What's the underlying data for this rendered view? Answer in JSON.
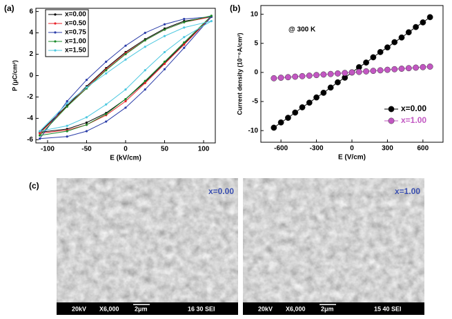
{
  "chart_data": [
    {
      "type": "line",
      "panel": "(a)",
      "xlabel": "E (kV/cm)",
      "ylabel": "P (μC/cm²)",
      "x": [
        -110,
        -75,
        -50,
        -25,
        0,
        25,
        50,
        75,
        110,
        75,
        50,
        25,
        0,
        -25,
        -50,
        -75,
        -110
      ],
      "xlim": [
        -115,
        115
      ],
      "xticks": [
        -100,
        -50,
        0,
        50,
        100
      ],
      "ylim": [
        -6.3,
        6.3
      ],
      "yticks": [
        -6,
        -4,
        -2,
        0,
        2,
        4,
        6
      ],
      "legend": "upper left",
      "series": [
        {
          "name": "x=0.00",
          "color": "#000000",
          "values": [
            -5.3,
            -2.8,
            -1.0,
            0.7,
            2.2,
            3.4,
            4.4,
            5.1,
            5.5,
            3.0,
            1.2,
            -0.6,
            -2.2,
            -3.5,
            -4.4,
            -5.0,
            -5.3
          ]
        },
        {
          "name": "x=0.50",
          "color": "#e8232a",
          "values": [
            -5.4,
            -2.9,
            -1.1,
            0.6,
            2.1,
            3.3,
            4.3,
            5.0,
            5.5,
            2.9,
            1.1,
            -0.7,
            -2.4,
            -3.7,
            -4.6,
            -5.1,
            -5.4
          ]
        },
        {
          "name": "x=0.75",
          "color": "#2a3ca8",
          "values": [
            -5.9,
            -2.4,
            -0.4,
            1.3,
            2.8,
            4.0,
            4.8,
            5.3,
            5.5,
            2.6,
            0.6,
            -1.3,
            -3.0,
            -4.3,
            -5.2,
            -5.7,
            -5.9
          ]
        },
        {
          "name": "x=1.00",
          "color": "#1a8a2a",
          "values": [
            -5.6,
            -2.9,
            -1.2,
            0.5,
            2.0,
            3.3,
            4.3,
            5.0,
            5.6,
            3.1,
            1.3,
            -0.5,
            -2.2,
            -3.6,
            -4.6,
            -5.2,
            -5.6
          ]
        },
        {
          "name": "x=1.50",
          "color": "#4cc8e0",
          "values": [
            -5.2,
            -2.6,
            -1.1,
            0.2,
            1.5,
            2.7,
            3.7,
            4.5,
            5.1,
            3.6,
            2.2,
            0.5,
            -1.3,
            -2.7,
            -3.9,
            -4.7,
            -5.2
          ]
        }
      ]
    },
    {
      "type": "line",
      "panel": "(b)",
      "xlabel": "E (V/cm)",
      "ylabel": "Current density (10⁻⁶A/cm²)",
      "annotation": "@ 300 K",
      "x": [
        -660,
        -600,
        -540,
        -480,
        -420,
        -360,
        -300,
        -240,
        -180,
        -120,
        -60,
        0,
        60,
        120,
        180,
        240,
        300,
        360,
        420,
        480,
        540,
        600,
        660
      ],
      "xlim": [
        -770,
        770
      ],
      "xticks": [
        -600,
        -300,
        0,
        300,
        600
      ],
      "ylim": [
        -12,
        11.5
      ],
      "yticks": [
        -10,
        -5,
        0,
        5,
        10
      ],
      "legend": "lower right",
      "series": [
        {
          "name": "x=0.00",
          "color": "#000000",
          "values": [
            -9.5,
            -8.6,
            -7.8,
            -6.9,
            -6.0,
            -5.2,
            -4.3,
            -3.5,
            -2.6,
            -1.7,
            -0.9,
            0,
            0.9,
            1.7,
            2.6,
            3.5,
            4.3,
            5.2,
            6.0,
            6.9,
            7.8,
            8.6,
            9.5
          ]
        },
        {
          "name": "x=1.00",
          "color": "#c257c2",
          "values": [
            -1.0,
            -0.91,
            -0.82,
            -0.73,
            -0.64,
            -0.55,
            -0.45,
            -0.36,
            -0.27,
            -0.18,
            -0.09,
            0,
            0.09,
            0.18,
            0.27,
            0.36,
            0.45,
            0.55,
            0.64,
            0.73,
            0.82,
            0.91,
            1.0
          ]
        }
      ]
    }
  ],
  "sem": {
    "panel": "(c)",
    "images": [
      {
        "tag": "x=0.00",
        "info": [
          "20kV",
          "X6,000",
          "2μm",
          "16 30 SEI"
        ]
      },
      {
        "tag": "x=1.00",
        "info": [
          "20kV",
          "X6,000",
          "2μm",
          "15 40 SEI"
        ]
      }
    ]
  }
}
